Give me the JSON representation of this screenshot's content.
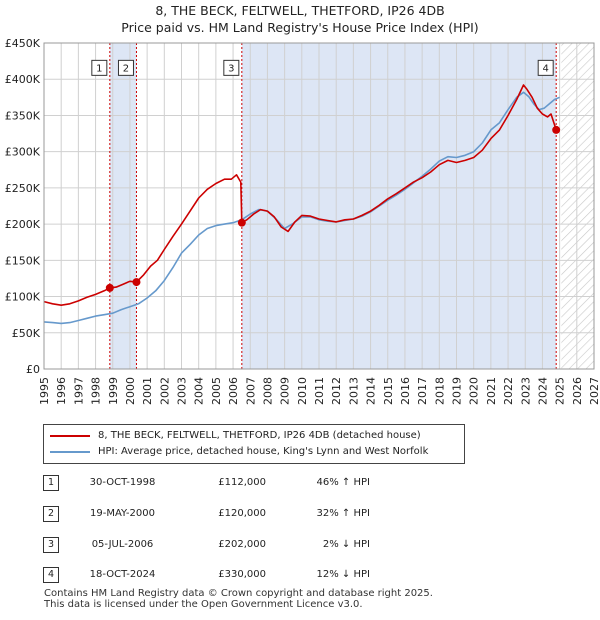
{
  "title": {
    "line1": "8, THE BECK, FELTWELL, THETFORD, IP26 4DB",
    "line2": "Price paid vs. HM Land Registry's House Price Index (HPI)"
  },
  "colors": {
    "price_paid": "#cc0000",
    "hpi": "#6699cc",
    "shade": "#dde6f5",
    "grid": "#d0d0d0"
  },
  "legend": {
    "price_paid_label": "8, THE BECK, FELTWELL, THETFORD, IP26 4DB (detached house)",
    "hpi_label": "HPI: Average price, detached house, King's Lynn and West Norfolk"
  },
  "sales": [
    {
      "n": "1",
      "date": "30-OCT-1998",
      "price": "£112,000",
      "hpi": "46% ↑ HPI"
    },
    {
      "n": "2",
      "date": "19-MAY-2000",
      "price": "£120,000",
      "hpi": "32% ↑ HPI"
    },
    {
      "n": "3",
      "date": "05-JUL-2006",
      "price": "£202,000",
      "hpi": "2% ↓ HPI"
    },
    {
      "n": "4",
      "date": "18-OCT-2024",
      "price": "£330,000",
      "hpi": "12% ↓ HPI"
    }
  ],
  "footer": {
    "line1": "Contains HM Land Registry data © Crown copyright and database right 2025.",
    "line2": "This data is licensed under the Open Government Licence v3.0."
  },
  "chart_data": {
    "type": "line",
    "xlim": [
      1995,
      2027
    ],
    "ylim": [
      0,
      450000
    ],
    "yticks": [
      {
        "v": 0,
        "label": "£0"
      },
      {
        "v": 50000,
        "label": "£50K"
      },
      {
        "v": 100000,
        "label": "£100K"
      },
      {
        "v": 150000,
        "label": "£150K"
      },
      {
        "v": 200000,
        "label": "£200K"
      },
      {
        "v": 250000,
        "label": "£250K"
      },
      {
        "v": 300000,
        "label": "£300K"
      },
      {
        "v": 350000,
        "label": "£350K"
      },
      {
        "v": 400000,
        "label": "£400K"
      },
      {
        "v": 450000,
        "label": "£450K"
      }
    ],
    "xticks": [
      1995,
      1996,
      1997,
      1998,
      1999,
      2000,
      2001,
      2002,
      2003,
      2004,
      2005,
      2006,
      2007,
      2008,
      2009,
      2010,
      2011,
      2012,
      2013,
      2014,
      2015,
      2016,
      2017,
      2018,
      2019,
      2020,
      2021,
      2022,
      2023,
      2024,
      2025,
      2026,
      2027
    ],
    "shaded_ranges": [
      [
        1998.83,
        2000.38
      ],
      [
        2006.51,
        2024.8
      ]
    ],
    "hatched_from": 2025.1,
    "sale_markers": [
      {
        "n": "1",
        "x": 1998.83,
        "y": 112000
      },
      {
        "n": "2",
        "x": 2000.38,
        "y": 120000
      },
      {
        "n": "3",
        "x": 2006.51,
        "y": 202000
      },
      {
        "n": "4",
        "x": 2024.8,
        "y": 330000
      }
    ],
    "series": [
      {
        "name": "8, THE BECK, FELTWELL, THETFORD, IP26 4DB (detached house)",
        "color": "#cc0000",
        "points": [
          [
            1995.0,
            93000
          ],
          [
            1995.5,
            90000
          ],
          [
            1996.0,
            88000
          ],
          [
            1996.5,
            90000
          ],
          [
            1997.0,
            94000
          ],
          [
            1997.5,
            99000
          ],
          [
            1998.0,
            103000
          ],
          [
            1998.5,
            108000
          ],
          [
            1998.83,
            112000
          ],
          [
            1999.2,
            113000
          ],
          [
            1999.6,
            117000
          ],
          [
            2000.0,
            121000
          ],
          [
            2000.38,
            120000
          ],
          [
            2000.8,
            130000
          ],
          [
            2001.2,
            142000
          ],
          [
            2001.6,
            150000
          ],
          [
            2002.0,
            165000
          ],
          [
            2002.5,
            183000
          ],
          [
            2003.0,
            200000
          ],
          [
            2003.5,
            218000
          ],
          [
            2004.0,
            236000
          ],
          [
            2004.5,
            248000
          ],
          [
            2005.0,
            256000
          ],
          [
            2005.5,
            262000
          ],
          [
            2005.9,
            262000
          ],
          [
            2006.2,
            268000
          ],
          [
            2006.45,
            258000
          ],
          [
            2006.51,
            202000
          ],
          [
            2006.8,
            206000
          ],
          [
            2007.2,
            214000
          ],
          [
            2007.6,
            220000
          ],
          [
            2008.0,
            218000
          ],
          [
            2008.4,
            210000
          ],
          [
            2008.8,
            196000
          ],
          [
            2009.2,
            190000
          ],
          [
            2009.6,
            203000
          ],
          [
            2010.0,
            212000
          ],
          [
            2010.5,
            211000
          ],
          [
            2011.0,
            207000
          ],
          [
            2011.5,
            205000
          ],
          [
            2012.0,
            203000
          ],
          [
            2012.5,
            206000
          ],
          [
            2013.0,
            207000
          ],
          [
            2013.5,
            212000
          ],
          [
            2014.0,
            218000
          ],
          [
            2014.5,
            226000
          ],
          [
            2015.0,
            235000
          ],
          [
            2015.5,
            242000
          ],
          [
            2016.0,
            250000
          ],
          [
            2016.5,
            258000
          ],
          [
            2017.0,
            264000
          ],
          [
            2017.5,
            272000
          ],
          [
            2018.0,
            282000
          ],
          [
            2018.5,
            288000
          ],
          [
            2019.0,
            285000
          ],
          [
            2019.5,
            288000
          ],
          [
            2020.0,
            292000
          ],
          [
            2020.5,
            302000
          ],
          [
            2021.0,
            318000
          ],
          [
            2021.5,
            330000
          ],
          [
            2022.0,
            350000
          ],
          [
            2022.5,
            372000
          ],
          [
            2022.9,
            392000
          ],
          [
            2023.1,
            386000
          ],
          [
            2023.4,
            375000
          ],
          [
            2023.7,
            360000
          ],
          [
            2024.0,
            352000
          ],
          [
            2024.3,
            348000
          ],
          [
            2024.5,
            352000
          ],
          [
            2024.8,
            330000
          ]
        ]
      },
      {
        "name": "HPI: Average price, detached house, King's Lynn and West Norfolk",
        "color": "#6699cc",
        "points": [
          [
            1995.0,
            65000
          ],
          [
            1995.5,
            64000
          ],
          [
            1996.0,
            63000
          ],
          [
            1996.5,
            64000
          ],
          [
            1997.0,
            67000
          ],
          [
            1997.5,
            70000
          ],
          [
            1998.0,
            73000
          ],
          [
            1998.5,
            75000
          ],
          [
            1999.0,
            77000
          ],
          [
            1999.5,
            82000
          ],
          [
            2000.0,
            86000
          ],
          [
            2000.5,
            90000
          ],
          [
            2001.0,
            98000
          ],
          [
            2001.5,
            108000
          ],
          [
            2002.0,
            122000
          ],
          [
            2002.5,
            140000
          ],
          [
            2003.0,
            160000
          ],
          [
            2003.5,
            172000
          ],
          [
            2004.0,
            185000
          ],
          [
            2004.5,
            194000
          ],
          [
            2005.0,
            198000
          ],
          [
            2005.5,
            200000
          ],
          [
            2006.0,
            202000
          ],
          [
            2006.5,
            206000
          ],
          [
            2007.0,
            214000
          ],
          [
            2007.5,
            220000
          ],
          [
            2008.0,
            218000
          ],
          [
            2008.5,
            207000
          ],
          [
            2009.0,
            194000
          ],
          [
            2009.5,
            201000
          ],
          [
            2010.0,
            210000
          ],
          [
            2010.5,
            210000
          ],
          [
            2011.0,
            206000
          ],
          [
            2011.5,
            204000
          ],
          [
            2012.0,
            203000
          ],
          [
            2012.5,
            205000
          ],
          [
            2013.0,
            207000
          ],
          [
            2013.5,
            211000
          ],
          [
            2014.0,
            217000
          ],
          [
            2014.5,
            225000
          ],
          [
            2015.0,
            233000
          ],
          [
            2015.5,
            240000
          ],
          [
            2016.0,
            248000
          ],
          [
            2016.5,
            257000
          ],
          [
            2017.0,
            266000
          ],
          [
            2017.5,
            276000
          ],
          [
            2018.0,
            287000
          ],
          [
            2018.5,
            293000
          ],
          [
            2019.0,
            292000
          ],
          [
            2019.5,
            295000
          ],
          [
            2020.0,
            300000
          ],
          [
            2020.5,
            312000
          ],
          [
            2021.0,
            330000
          ],
          [
            2021.5,
            340000
          ],
          [
            2022.0,
            358000
          ],
          [
            2022.5,
            375000
          ],
          [
            2022.9,
            382000
          ],
          [
            2023.2,
            376000
          ],
          [
            2023.5,
            366000
          ],
          [
            2023.8,
            358000
          ],
          [
            2024.1,
            360000
          ],
          [
            2024.4,
            366000
          ],
          [
            2024.7,
            372000
          ],
          [
            2025.0,
            375000
          ]
        ]
      }
    ]
  }
}
